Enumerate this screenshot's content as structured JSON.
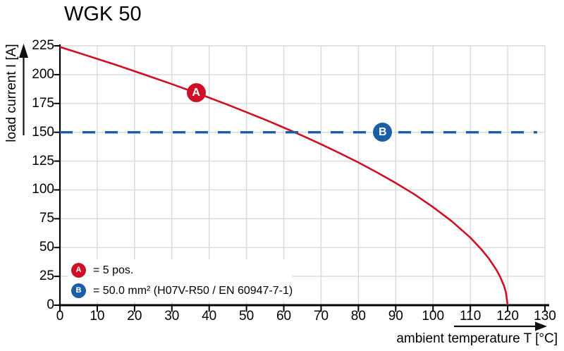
{
  "title": "WGK 50",
  "y_axis": {
    "label": "load current I [A]",
    "ticks": [
      0,
      25,
      50,
      75,
      100,
      125,
      150,
      175,
      200,
      225
    ],
    "min": 0,
    "max": 225
  },
  "x_axis": {
    "label": "ambient temperature T [°C]",
    "ticks": [
      0,
      10,
      20,
      30,
      40,
      50,
      60,
      70,
      80,
      90,
      100,
      110,
      120,
      130
    ],
    "min": 0,
    "max": 130
  },
  "legend": {
    "items": [
      {
        "id": "A",
        "color": "#cd1026",
        "text": "= 5 pos."
      },
      {
        "id": "B",
        "color": "#1a5ea6",
        "text": "= 50.0 mm² (H07V-R50 / EN 60947-7-1)"
      }
    ]
  },
  "colors": {
    "red": "#cd1026",
    "blue": "#1a5ea6",
    "grid": "#d9d9d9",
    "axis": "#000000",
    "background": "#ffffff"
  },
  "chart_data": {
    "type": "line",
    "title": "WGK 50",
    "xlabel": "ambient temperature T [°C]",
    "ylabel": "load current I [A]",
    "xlim": [
      0,
      130
    ],
    "ylim": [
      0,
      225
    ],
    "grid": true,
    "legend_position": "lower-left",
    "series": [
      {
        "name": "derating curve A (5 pos.)",
        "color": "#cd1026",
        "style": "solid",
        "width": 2.6,
        "points": [
          [
            0,
            224.0
          ],
          [
            5,
            218.9
          ],
          [
            10,
            213.7
          ],
          [
            15,
            208.5
          ],
          [
            20,
            203.0
          ],
          [
            25,
            197.4
          ],
          [
            30,
            191.8
          ],
          [
            35,
            186.0
          ],
          [
            40,
            180.0
          ],
          [
            45,
            173.8
          ],
          [
            50,
            167.4
          ],
          [
            55,
            160.9
          ],
          [
            60,
            154.1
          ],
          [
            65,
            147.0
          ],
          [
            70,
            139.6
          ],
          [
            75,
            131.9
          ],
          [
            80,
            123.8
          ],
          [
            85,
            115.2
          ],
          [
            90,
            106.0
          ],
          [
            95,
            96.2
          ],
          [
            100,
            85.1
          ],
          [
            105,
            72.9
          ],
          [
            110,
            58.6
          ],
          [
            113,
            48.3
          ],
          [
            115,
            40.3
          ],
          [
            117,
            30.6
          ],
          [
            118,
            24.5
          ],
          [
            119,
            16.9
          ],
          [
            119.5,
            11.6
          ],
          [
            120,
            0
          ]
        ]
      },
      {
        "name": "rated current limit B (50.0 mm²)",
        "color": "#1a5ea6",
        "style": "dashed",
        "width": 3.4,
        "points": [
          [
            0,
            150
          ],
          [
            127.9,
            150
          ]
        ]
      }
    ],
    "markers": [
      {
        "label": "A",
        "x": 36.5,
        "y": 184.2,
        "color": "#cd1026"
      },
      {
        "label": "B",
        "x": 86.5,
        "y": 150.0,
        "color": "#1a5ea6"
      }
    ]
  }
}
